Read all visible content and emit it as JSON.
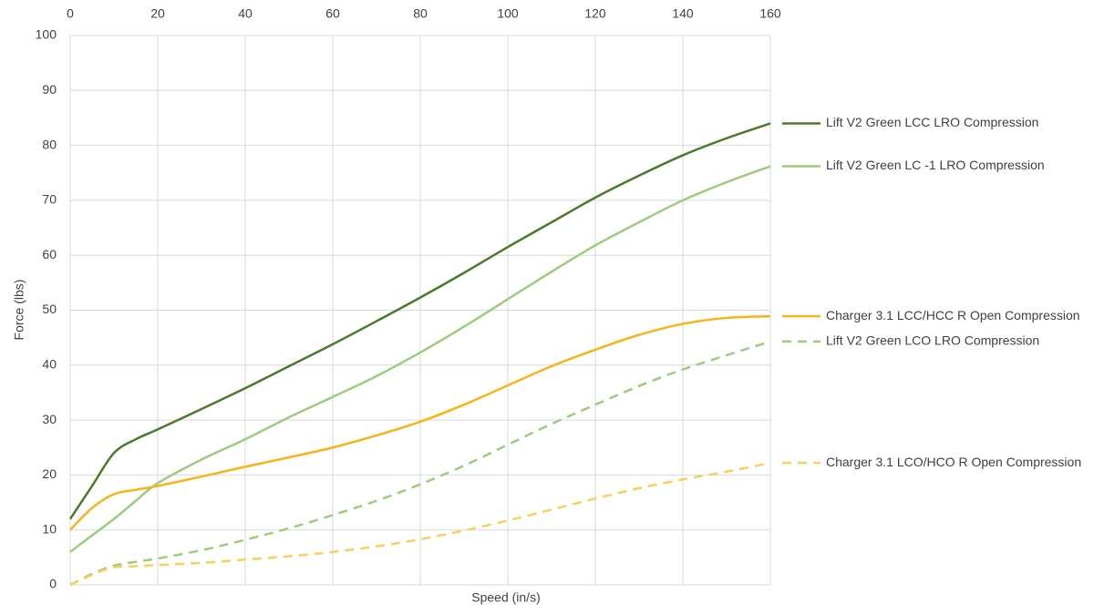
{
  "chart_data": {
    "type": "line",
    "x_label": "Speed (in/s)",
    "y_label": "Force (lbs)",
    "x": [
      0,
      5,
      10,
      15,
      20,
      30,
      40,
      50,
      60,
      70,
      80,
      90,
      100,
      110,
      120,
      130,
      140,
      150,
      160
    ],
    "series": [
      {
        "name": "Lift V2 Green LCC LRO Compression",
        "color": "#4a7a2a",
        "dashed": false,
        "values": [
          12,
          18,
          24,
          26.5,
          28.3,
          32,
          35.8,
          39.8,
          43.8,
          48,
          52.3,
          56.8,
          61.5,
          66,
          70.5,
          74.5,
          78.2,
          81.3,
          84
        ]
      },
      {
        "name": "Lift V2 Green LC -1 LRO Compression",
        "color": "#9ccc7c",
        "dashed": false,
        "values": [
          6,
          9,
          12,
          15.3,
          18.5,
          22.8,
          26.5,
          30.5,
          34.2,
          38,
          42.3,
          47,
          52,
          57,
          61.8,
          66,
          70,
          73.3,
          76.2
        ]
      },
      {
        "name": "Charger 3.1 LCC/HCC R Open Compression",
        "color": "#f7b416",
        "dashed": false,
        "values": [
          10,
          14,
          16.5,
          17.3,
          18,
          19.7,
          21.5,
          23.2,
          25,
          27.2,
          29.7,
          32.8,
          36.3,
          39.8,
          42.8,
          45.5,
          47.5,
          48.6,
          48.9
        ]
      },
      {
        "name": "Lift V2 Green LCO LRO Compression",
        "color": "#9ccc7c",
        "dashed": true,
        "values": [
          0,
          2,
          3.5,
          4.2,
          4.8,
          6.3,
          8.2,
          10.3,
          12.7,
          15.3,
          18.3,
          21.7,
          25.5,
          29.3,
          32.8,
          36.2,
          39.2,
          41.8,
          44.3
        ]
      },
      {
        "name": "Charger 3.1 LCO/HCO R Open Compression",
        "color": "#f9d05a",
        "dashed": true,
        "values": [
          0,
          1.8,
          3.2,
          3.4,
          3.6,
          4,
          4.6,
          5.2,
          6,
          7,
          8.3,
          9.9,
          11.7,
          13.7,
          15.7,
          17.6,
          19.2,
          20.6,
          22.2
        ]
      }
    ],
    "xlim": [
      0,
      160
    ],
    "xticks": [
      0,
      20,
      40,
      60,
      80,
      100,
      120,
      140,
      160
    ],
    "ylim": [
      0,
      100
    ],
    "yticks": [
      0,
      10,
      20,
      30,
      40,
      50,
      60,
      70,
      80,
      90,
      100
    ],
    "grid": true,
    "x_axis_position": "top",
    "legend": "right"
  }
}
